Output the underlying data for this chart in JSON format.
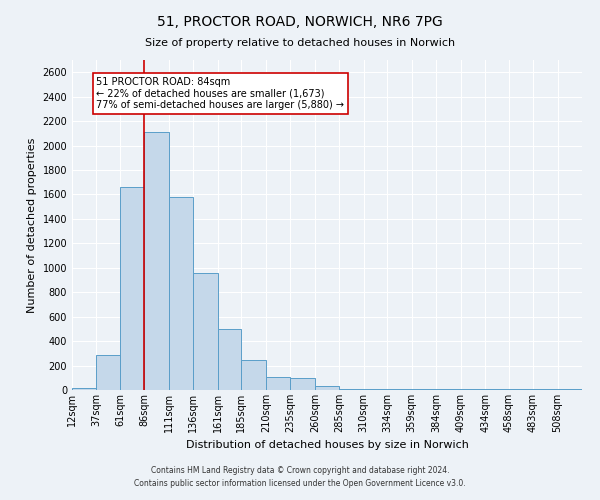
{
  "title_line1": "51, PROCTOR ROAD, NORWICH, NR6 7PG",
  "title_line2": "Size of property relative to detached houses in Norwich",
  "xlabel": "Distribution of detached houses by size in Norwich",
  "ylabel": "Number of detached properties",
  "bin_labels": [
    "12sqm",
    "37sqm",
    "61sqm",
    "86sqm",
    "111sqm",
    "136sqm",
    "161sqm",
    "185sqm",
    "210sqm",
    "235sqm",
    "260sqm",
    "285sqm",
    "310sqm",
    "334sqm",
    "359sqm",
    "384sqm",
    "409sqm",
    "434sqm",
    "458sqm",
    "483sqm",
    "508sqm"
  ],
  "bar_values": [
    20,
    290,
    1660,
    2110,
    1580,
    960,
    500,
    245,
    110,
    95,
    30,
    10,
    5,
    5,
    5,
    5,
    5,
    5,
    5,
    5,
    10
  ],
  "bar_color": "#c5d8ea",
  "bar_edge_color": "#5a9ec9",
  "property_line_x": 86,
  "property_line_color": "#cc0000",
  "annotation_title": "51 PROCTOR ROAD: 84sqm",
  "annotation_line1": "← 22% of detached houses are smaller (1,673)",
  "annotation_line2": "77% of semi-detached houses are larger (5,880) →",
  "annotation_box_facecolor": "white",
  "annotation_box_edgecolor": "#cc0000",
  "ylim": [
    0,
    2700
  ],
  "yticks": [
    0,
    200,
    400,
    600,
    800,
    1000,
    1200,
    1400,
    1600,
    1800,
    2000,
    2200,
    2400,
    2600
  ],
  "bin_edges": [
    12,
    37,
    61,
    86,
    111,
    136,
    161,
    185,
    210,
    235,
    260,
    285,
    310,
    334,
    359,
    384,
    409,
    434,
    458,
    483,
    508,
    533
  ],
  "footnote1": "Contains HM Land Registry data © Crown copyright and database right 2024.",
  "footnote2": "Contains public sector information licensed under the Open Government Licence v3.0.",
  "background_color": "#edf2f7",
  "grid_color": "white",
  "title1_fontsize": 10,
  "title2_fontsize": 8,
  "ylabel_fontsize": 8,
  "xlabel_fontsize": 8,
  "tick_fontsize": 7,
  "footnote_fontsize": 5.5,
  "annotation_fontsize": 7
}
